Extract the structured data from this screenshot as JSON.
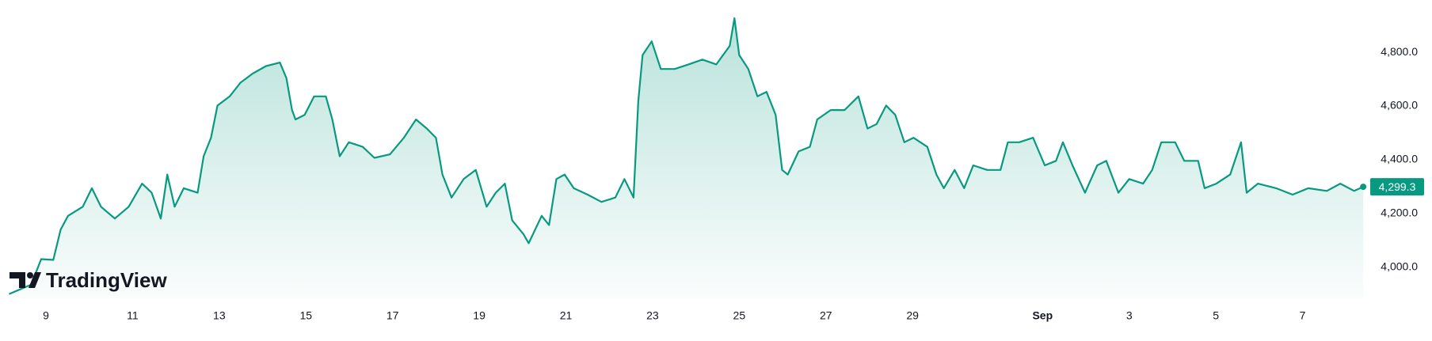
{
  "chart_data": {
    "type": "area",
    "watermark": "TradingView",
    "color": "#089981",
    "x": [
      -0.85,
      -0.34,
      -0.11,
      0.17,
      0.34,
      0.51,
      0.85,
      1.06,
      1.27,
      1.59,
      1.91,
      2.22,
      2.44,
      2.65,
      2.8,
      2.97,
      3.18,
      3.5,
      3.64,
      3.81,
      3.96,
      4.24,
      4.49,
      4.77,
      5.08,
      5.4,
      5.55,
      5.68,
      5.76,
      5.97,
      6.19,
      6.46,
      6.61,
      6.78,
      6.99,
      7.31,
      7.58,
      7.94,
      8.26,
      8.54,
      8.79,
      9.0,
      9.15,
      9.36,
      9.64,
      9.92,
      10.17,
      10.38,
      10.59,
      10.76,
      11.02,
      11.14,
      11.44,
      11.61,
      11.78,
      11.97,
      12.18,
      12.5,
      12.82,
      13.14,
      13.35,
      13.56,
      13.67,
      13.77,
      13.98,
      14.19,
      14.51,
      14.83,
      15.15,
      15.47,
      15.78,
      15.89,
      16.0,
      16.21,
      16.42,
      16.63,
      16.84,
      16.99,
      17.12,
      17.37,
      17.63,
      17.8,
      18.11,
      18.43,
      18.75,
      18.96,
      19.17,
      19.39,
      19.6,
      19.81,
      20.02,
      20.34,
      20.55,
      20.72,
      20.97,
      21.19,
      21.4,
      21.72,
      22.03,
      22.2,
      22.46,
      22.78,
      23.05,
      23.31,
      23.47,
      23.69,
      23.98,
      24.26,
      24.47,
      24.75,
      25.0,
      25.32,
      25.53,
      25.74,
      26.06,
      26.27,
      26.59,
      26.74,
      27.01,
      27.33,
      27.58,
      27.71,
      27.97,
      28.39,
      28.77,
      29.13,
      29.56,
      29.87,
      30.19,
      30.4
    ],
    "values": [
      3900,
      3935,
      4030,
      4027,
      4140,
      4191,
      4225,
      4294,
      4225,
      4181,
      4225,
      4311,
      4277,
      4181,
      4345,
      4225,
      4294,
      4277,
      4413,
      4482,
      4602,
      4636,
      4687,
      4721,
      4749,
      4762,
      4704,
      4585,
      4550,
      4567,
      4636,
      4636,
      4550,
      4413,
      4465,
      4448,
      4407,
      4420,
      4482,
      4550,
      4516,
      4482,
      4345,
      4259,
      4328,
      4362,
      4225,
      4277,
      4311,
      4174,
      4123,
      4089,
      4191,
      4157,
      4328,
      4345,
      4294,
      4270,
      4243,
      4259,
      4328,
      4259,
      4619,
      4790,
      4841,
      4738,
      4738,
      4755,
      4773,
      4755,
      4824,
      4927,
      4790,
      4738,
      4636,
      4653,
      4567,
      4362,
      4345,
      4431,
      4448,
      4550,
      4585,
      4585,
      4636,
      4516,
      4533,
      4602,
      4567,
      4465,
      4482,
      4448,
      4345,
      4294,
      4362,
      4294,
      4379,
      4362,
      4362,
      4465,
      4465,
      4482,
      4379,
      4396,
      4465,
      4379,
      4277,
      4379,
      4396,
      4277,
      4328,
      4311,
      4362,
      4465,
      4465,
      4396,
      4396,
      4294,
      4311,
      4345,
      4465,
      4277,
      4311,
      4294,
      4270,
      4294,
      4284,
      4311,
      4284,
      4299.3
    ],
    "last_price": {
      "value": 4299.3,
      "label": "4,299.3"
    },
    "xlim": [
      -1.06,
      30.47
    ],
    "xticks": [
      {
        "value": 0,
        "label": "9"
      },
      {
        "value": 2,
        "label": "11"
      },
      {
        "value": 4,
        "label": "13"
      },
      {
        "value": 6,
        "label": "15"
      },
      {
        "value": 8,
        "label": "17"
      },
      {
        "value": 10,
        "label": "19"
      },
      {
        "value": 12,
        "label": "21"
      },
      {
        "value": 14,
        "label": "23"
      },
      {
        "value": 16,
        "label": "25"
      },
      {
        "value": 18,
        "label": "27"
      },
      {
        "value": 20,
        "label": "29"
      },
      {
        "value": 23,
        "label": "Sep"
      },
      {
        "value": 25,
        "label": "3"
      },
      {
        "value": 27,
        "label": "5"
      },
      {
        "value": 29,
        "label": "7"
      }
    ],
    "ylim": [
      3884,
      4995
    ],
    "yticks": [
      {
        "value": 4000,
        "label": "4,000.0"
      },
      {
        "value": 4200,
        "label": "4,200.0"
      },
      {
        "value": 4400,
        "label": "4,400.0"
      },
      {
        "value": 4600,
        "label": "4,600.0"
      },
      {
        "value": 4800,
        "label": "4,800.0"
      }
    ]
  }
}
